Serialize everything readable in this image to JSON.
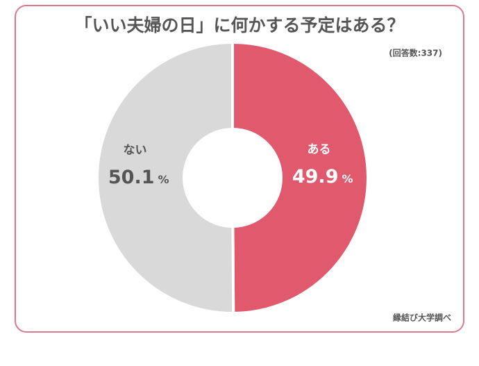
{
  "chart_data": {
    "type": "donut",
    "title": "「いい夫婦の日」に何かする予定はある？",
    "subtitle": "(回答数:337)",
    "source": "縁結び大学調べ",
    "categories": [
      "ある",
      "ない"
    ],
    "values": [
      49.9,
      50.1
    ],
    "unit": "%",
    "colors": [
      "#e0596d",
      "#d9d9d9"
    ]
  }
}
